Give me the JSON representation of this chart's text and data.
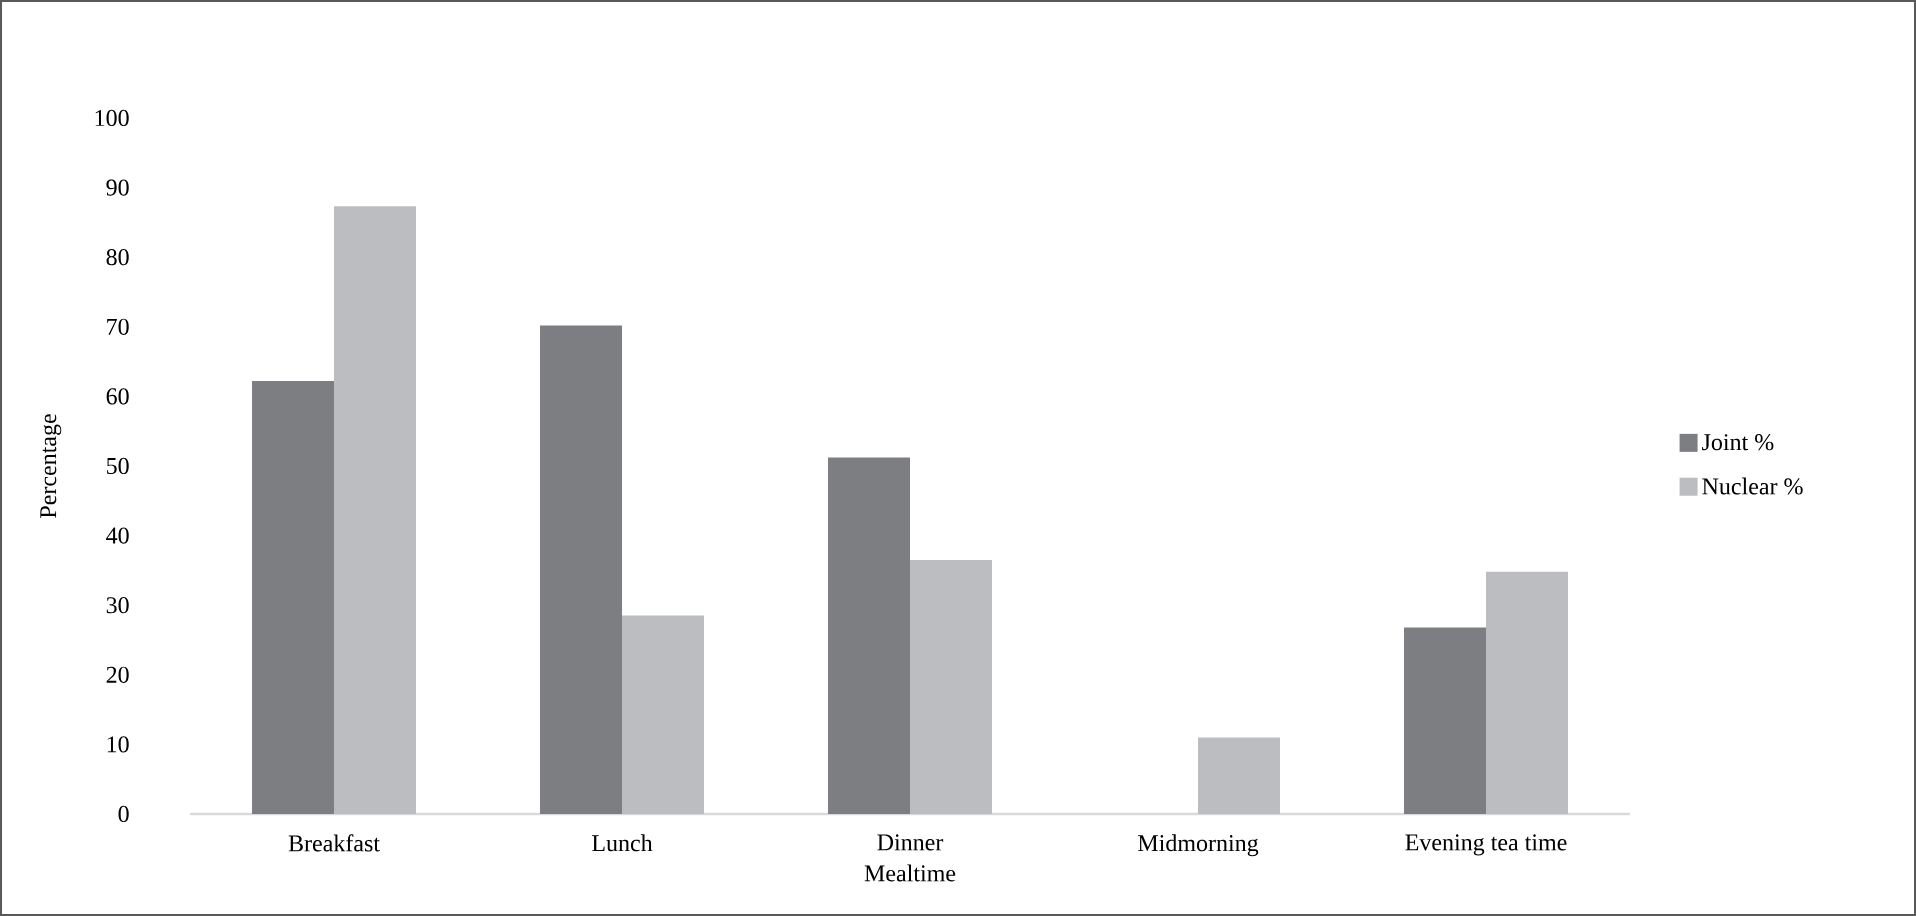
{
  "chart_data": {
    "type": "bar",
    "xlabel": "Mealtime",
    "ylabel": "Percentage",
    "categories": [
      "Breakfast",
      "Lunch",
      "Dinner",
      "Midmorning",
      "Evening tea time"
    ],
    "series": [
      {
        "name": "Joint %",
        "color": "#7d7e82",
        "values": [
          62.2,
          70.2,
          51.2,
          0,
          26.8
        ]
      },
      {
        "name": "Nuclear %",
        "color": "#bcbdc1",
        "values": [
          87.3,
          28.5,
          36.5,
          11.0,
          34.8
        ]
      }
    ],
    "ylim": [
      0,
      100
    ],
    "yticks": [
      0,
      10,
      20,
      30,
      40,
      50,
      60,
      70,
      80,
      90,
      100
    ],
    "legend": "right"
  }
}
